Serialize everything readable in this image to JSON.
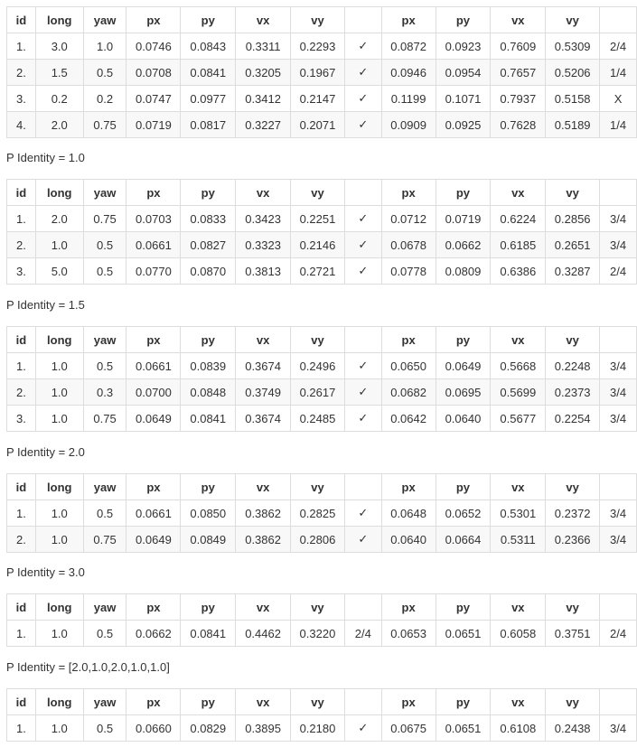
{
  "headers": [
    "id",
    "long",
    "yaw",
    "px",
    "py",
    "vx",
    "vy",
    "",
    "px",
    "py",
    "vx",
    "vy",
    ""
  ],
  "sections": [
    {
      "caption": "",
      "rows": [
        [
          "1.",
          "3.0",
          "1.0",
          "0.0746",
          "0.0843",
          "0.3311",
          "0.2293",
          "✓",
          "0.0872",
          "0.0923",
          "0.7609",
          "0.5309",
          "2/4"
        ],
        [
          "2.",
          "1.5",
          "0.5",
          "0.0708",
          "0.0841",
          "0.3205",
          "0.1967",
          "✓",
          "0.0946",
          "0.0954",
          "0.7657",
          "0.5206",
          "1/4"
        ],
        [
          "3.",
          "0.2",
          "0.2",
          "0.0747",
          "0.0977",
          "0.3412",
          "0.2147",
          "✓",
          "0.1199",
          "0.1071",
          "0.7937",
          "0.5158",
          "X"
        ],
        [
          "4.",
          "2.0",
          "0.75",
          "0.0719",
          "0.0817",
          "0.3227",
          "0.2071",
          "✓",
          "0.0909",
          "0.0925",
          "0.7628",
          "0.5189",
          "1/4"
        ]
      ]
    },
    {
      "caption": "P Identity = 1.0",
      "rows": [
        [
          "1.",
          "2.0",
          "0.75",
          "0.0703",
          "0.0833",
          "0.3423",
          "0.2251",
          "✓",
          "0.0712",
          "0.0719",
          "0.6224",
          "0.2856",
          "3/4"
        ],
        [
          "2.",
          "1.0",
          "0.5",
          "0.0661",
          "0.0827",
          "0.3323",
          "0.2146",
          "✓",
          "0.0678",
          "0.0662",
          "0.6185",
          "0.2651",
          "3/4"
        ],
        [
          "3.",
          "5.0",
          "0.5",
          "0.0770",
          "0.0870",
          "0.3813",
          "0.2721",
          "✓",
          "0.0778",
          "0.0809",
          "0.6386",
          "0.3287",
          "2/4"
        ]
      ]
    },
    {
      "caption": "P Identity = 1.5",
      "rows": [
        [
          "1.",
          "1.0",
          "0.5",
          "0.0661",
          "0.0839",
          "0.3674",
          "0.2496",
          "✓",
          "0.0650",
          "0.0649",
          "0.5668",
          "0.2248",
          "3/4"
        ],
        [
          "2.",
          "1.0",
          "0.3",
          "0.0700",
          "0.0848",
          "0.3749",
          "0.2617",
          "✓",
          "0.0682",
          "0.0695",
          "0.5699",
          "0.2373",
          "3/4"
        ],
        [
          "3.",
          "1.0",
          "0.75",
          "0.0649",
          "0.0841",
          "0.3674",
          "0.2485",
          "✓",
          "0.0642",
          "0.0640",
          "0.5677",
          "0.2254",
          "3/4"
        ]
      ]
    },
    {
      "caption": "P Identity = 2.0",
      "rows": [
        [
          "1.",
          "1.0",
          "0.5",
          "0.0661",
          "0.0850",
          "0.3862",
          "0.2825",
          "✓",
          "0.0648",
          "0.0652",
          "0.5301",
          "0.2372",
          "3/4"
        ],
        [
          "2.",
          "1.0",
          "0.75",
          "0.0649",
          "0.0849",
          "0.3862",
          "0.2806",
          "✓",
          "0.0640",
          "0.0664",
          "0.5311",
          "0.2366",
          "3/4"
        ]
      ]
    },
    {
      "caption": "P Identity = 3.0",
      "rows": [
        [
          "1.",
          "1.0",
          "0.5",
          "0.0662",
          "0.0841",
          "0.4462",
          "0.3220",
          "2/4",
          "0.0653",
          "0.0651",
          "0.6058",
          "0.3751",
          "2/4"
        ]
      ]
    },
    {
      "caption": "P Identity = [2.0,1.0,2.0,1.0,1.0]",
      "rows": [
        [
          "1.",
          "1.0",
          "0.5",
          "0.0660",
          "0.0829",
          "0.3895",
          "0.2180",
          "✓",
          "0.0675",
          "0.0651",
          "0.6108",
          "0.2438",
          "3/4"
        ]
      ]
    }
  ]
}
